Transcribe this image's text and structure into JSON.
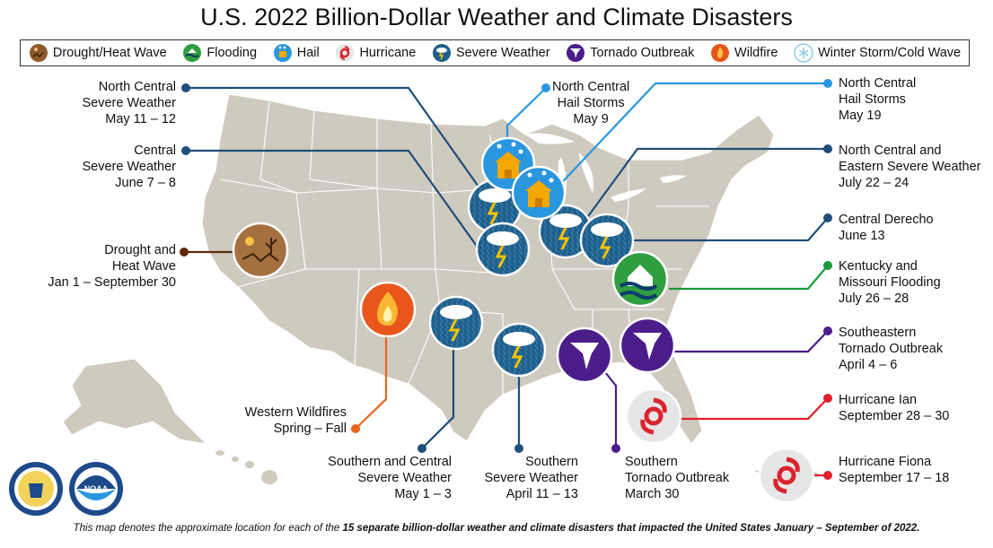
{
  "title": "U.S. 2022 Billion-Dollar Weather and Climate Disasters",
  "legend": [
    {
      "label": "Drought/Heat Wave",
      "icon": "drought-icon",
      "color": "#8b5a2b"
    },
    {
      "label": "Flooding",
      "icon": "flooding-icon",
      "color": "#2e9e3e"
    },
    {
      "label": "Hail",
      "icon": "hail-icon",
      "color": "#f5a800"
    },
    {
      "label": "Hurricane",
      "icon": "hurricane-icon",
      "color": "#d9232d"
    },
    {
      "label": "Severe Weather",
      "icon": "severe-weather-icon",
      "color": "#1f5f8b"
    },
    {
      "label": "Tornado Outbreak",
      "icon": "tornado-icon",
      "color": "#4b1d8a"
    },
    {
      "label": "Wildfire",
      "icon": "wildfire-icon",
      "color": "#e8561b"
    },
    {
      "label": "Winter Storm/Cold Wave",
      "icon": "winter-storm-icon",
      "color": "#8ecde8"
    }
  ],
  "events": {
    "nc_severe": [
      "North Central",
      "Severe Weather",
      "May 11 – 12"
    ],
    "central_severe": [
      "Central",
      "Severe Weather",
      "June 7 – 8"
    ],
    "drought": [
      "Drought and",
      "Heat Wave",
      "Jan 1 – September 30"
    ],
    "nc_hail_may9": [
      "North Central",
      "Hail Storms",
      "May 9"
    ],
    "nc_hail_may19": [
      "North Central",
      "Hail Storms",
      "May 19"
    ],
    "nce_severe": [
      "North Central and",
      "Eastern Severe Weather",
      "July 22 – 24"
    ],
    "derecho": [
      "Central Derecho",
      "June 13"
    ],
    "ky_mo_flood": [
      "Kentucky and",
      "Missouri Flooding",
      "July 26 – 28"
    ],
    "se_tornado": [
      "Southeastern",
      "Tornado Outbreak",
      "April 4 – 6"
    ],
    "ian": [
      "Hurricane Ian",
      "September 28 – 30"
    ],
    "fiona": [
      "Hurricane Fiona",
      "September 17 – 18"
    ],
    "wildfires": [
      "Western Wildfires",
      "Spring – Fall"
    ],
    "sc_severe": [
      "Southern and Central",
      "Severe Weather",
      "May 1 – 3"
    ],
    "s_severe": [
      "Southern",
      "Severe Weather",
      "April 11 – 13"
    ],
    "s_tornado": [
      "Southern",
      "Tornado Outbreak",
      "March 30"
    ]
  },
  "footnote": {
    "pre": "This map denotes the approximate location for each of the ",
    "bold": "15 separate billion-dollar weather and climate disasters that impacted the United States January – September of 2022.",
    "post": ""
  },
  "colors": {
    "land": "#cfcabf",
    "border": "#ffffff",
    "severe": "#1f5f8b",
    "hail": "#2a96e0",
    "tornado": "#4b1d8a",
    "hurricane_line": "#e0202a",
    "flood_line": "#1a9a3a",
    "wildfire_line": "#e8641b",
    "drought_line": "#5b2a0c"
  }
}
